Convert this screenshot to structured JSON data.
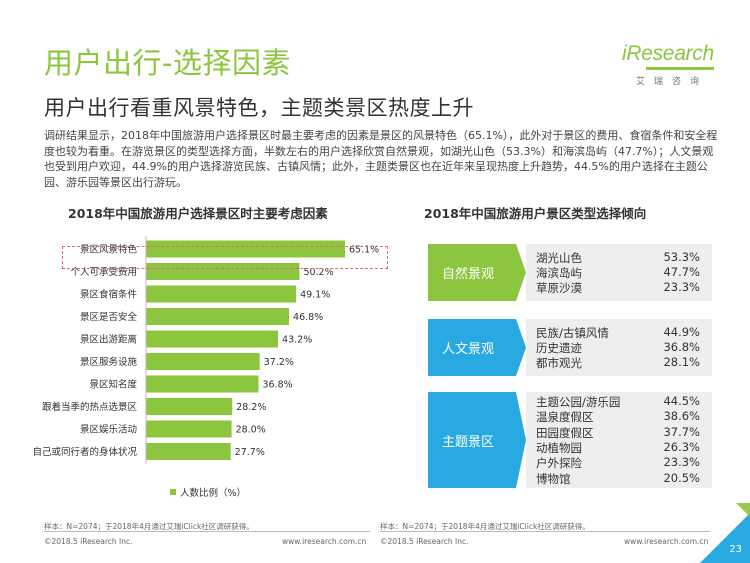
{
  "page": {
    "title": "用户出行-选择因素",
    "subtitle": "用户出行看重风景特色，主题类景区热度上升",
    "intro": "调研结果显示，2018年中国旅游用户选择景区时最主要考虑的因素是景区的风景特色（65.1%），此外对于景区的费用、食宿条件和安全程度也较为看重。在游览景区的类型选择方面，半数左右的用户选择欣赏自然景观，如湖光山色（53.3%）和海滨岛屿（47.7%）；人文景观也受到用户欢迎，44.9%的用户选择游览民族、古镇风情；此外，主题类景区也在近年来呈现热度上升趋势，44.5%的用户选择在主题公园、游乐园等景区出行游玩。",
    "page_number": "23"
  },
  "logo": {
    "main": "iResearch",
    "sub": "艾瑞咨询"
  },
  "colors": {
    "accent": "#8cc63f",
    "nature": "#8cc63f",
    "culture": "#29a9e1",
    "theme": "#29a9e1",
    "highlight": "#e8676d"
  },
  "left_chart_title": "2018年中国旅游用户选择景区时主要考虑因素",
  "right_chart_title": "2018年中国旅游用户景区类型选择倾向",
  "chart_data": [
    {
      "type": "bar",
      "orientation": "horizontal",
      "title": "2018年中国旅游用户选择景区时主要考虑因素",
      "categories": [
        "景区风景特色",
        "个人可承受费用",
        "景区食宿条件",
        "景区是否安全",
        "景区出游距离",
        "景区服务设施",
        "景区知名度",
        "跟着当季的热点选景区",
        "景区娱乐活动",
        "自己或同行者的身体状况"
      ],
      "series": [
        {
          "name": "人数比例（%）",
          "values": [
            65.1,
            50.2,
            49.1,
            46.8,
            43.2,
            37.2,
            36.8,
            28.2,
            28.0,
            27.7
          ]
        }
      ],
      "value_labels": [
        "65.1%",
        "50.2%",
        "49.1%",
        "46.8%",
        "43.2%",
        "37.2%",
        "36.8%",
        "28.2%",
        "28.0%",
        "27.7%"
      ],
      "xlim": [
        0,
        70
      ],
      "grid": false,
      "legend": "bottom",
      "highlighted_category": "景区风景特色"
    },
    {
      "type": "table",
      "title": "2018年中国旅游用户景区类型选择倾向",
      "groups": [
        {
          "name": "自然景观",
          "color": "#8cc63f",
          "items": [
            {
              "label": "湖光山色",
              "value": "53.3%"
            },
            {
              "label": "海滨岛屿",
              "value": "47.7%"
            },
            {
              "label": "草原沙漠",
              "value": "23.3%"
            }
          ]
        },
        {
          "name": "人文景观",
          "color": "#29a9e1",
          "items": [
            {
              "label": "民族/古镇风情",
              "value": "44.9%"
            },
            {
              "label": "历史遗迹",
              "value": "36.8%"
            },
            {
              "label": "都市观光",
              "value": "28.1%"
            }
          ]
        },
        {
          "name": "主题景区",
          "color": "#29a9e1",
          "items": [
            {
              "label": "主题公园/游乐园",
              "value": "44.5%"
            },
            {
              "label": "温泉度假区",
              "value": "38.6%"
            },
            {
              "label": "田园度假区",
              "value": "37.7%"
            },
            {
              "label": "动植物园",
              "value": "26.3%"
            },
            {
              "label": "户外探险",
              "value": "23.3%"
            },
            {
              "label": "博物馆",
              "value": "20.5%"
            }
          ]
        }
      ]
    }
  ],
  "footer": {
    "sample_note": "样本：N=2074；于2018年4月通过艾瑞iClick社区调研获得。",
    "copyright": "©2018.5 iResearch Inc.",
    "website": "www.iresearch.com.cn"
  }
}
